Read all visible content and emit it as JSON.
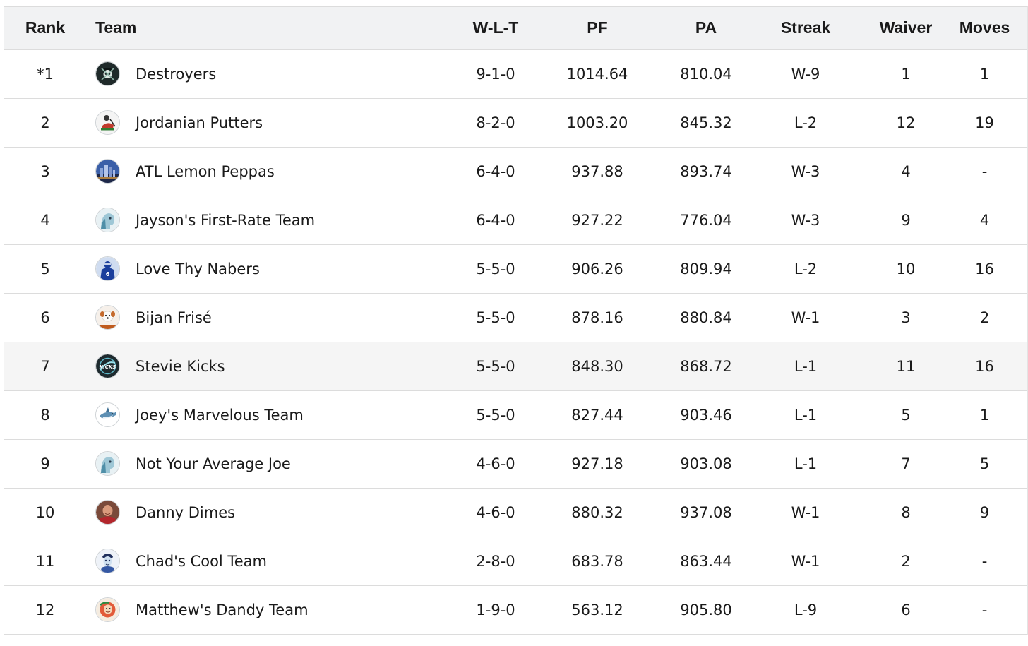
{
  "header": {
    "rank": "Rank",
    "team": "Team",
    "wlt": "W-L-T",
    "pf": "PF",
    "pa": "PA",
    "streak": "Streak",
    "waiver": "Waiver",
    "moves": "Moves"
  },
  "rows": [
    {
      "rank": "*1",
      "team": "Destroyers",
      "wlt": "9-1-0",
      "pf": "1014.64",
      "pa": "810.04",
      "streak": "W-9",
      "waiver": "1",
      "moves": "1",
      "logo": "pirate-skull-icon"
    },
    {
      "rank": "2",
      "team": "Jordanian Putters",
      "wlt": "8-2-0",
      "pf": "1003.20",
      "pa": "845.32",
      "streak": "L-2",
      "waiver": "12",
      "moves": "19",
      "logo": "golfer-icon"
    },
    {
      "rank": "3",
      "team": "ATL Lemon Peppas",
      "wlt": "6-4-0",
      "pf": "937.88",
      "pa": "893.74",
      "streak": "W-3",
      "waiver": "4",
      "moves": "-",
      "logo": "city-skyline-icon"
    },
    {
      "rank": "4",
      "team": "Jayson's First-Rate Team",
      "wlt": "6-4-0",
      "pf": "927.22",
      "pa": "776.04",
      "streak": "W-3",
      "waiver": "9",
      "moves": "4",
      "logo": "default-avatar-icon"
    },
    {
      "rank": "5",
      "team": "Love Thy Nabers",
      "wlt": "5-5-0",
      "pf": "906.26",
      "pa": "809.94",
      "streak": "L-2",
      "waiver": "10",
      "moves": "16",
      "logo": "football-player-icon"
    },
    {
      "rank": "6",
      "team": "Bijan Frisé",
      "wlt": "5-5-0",
      "pf": "878.16",
      "pa": "880.84",
      "streak": "W-1",
      "waiver": "3",
      "moves": "2",
      "logo": "dog-icon"
    },
    {
      "rank": "7",
      "team": "Stevie Kicks",
      "wlt": "5-5-0",
      "pf": "848.30",
      "pa": "868.72",
      "streak": "L-1",
      "waiver": "11",
      "moves": "16",
      "logo": "kicks-badge-icon"
    },
    {
      "rank": "8",
      "team": "Joey's Marvelous Team",
      "wlt": "5-5-0",
      "pf": "827.44",
      "pa": "903.46",
      "streak": "L-1",
      "waiver": "5",
      "moves": "1",
      "logo": "shark-icon"
    },
    {
      "rank": "9",
      "team": "Not Your Average Joe",
      "wlt": "4-6-0",
      "pf": "927.18",
      "pa": "903.08",
      "streak": "L-1",
      "waiver": "7",
      "moves": "5",
      "logo": "default-avatar-icon"
    },
    {
      "rank": "10",
      "team": "Danny Dimes",
      "wlt": "4-6-0",
      "pf": "880.32",
      "pa": "937.08",
      "streak": "W-1",
      "waiver": "8",
      "moves": "9",
      "logo": "player-photo-icon"
    },
    {
      "rank": "11",
      "team": "Chad's Cool Team",
      "wlt": "2-8-0",
      "pf": "683.78",
      "pa": "863.44",
      "streak": "W-1",
      "waiver": "2",
      "moves": "-",
      "logo": "cartoon-face-icon"
    },
    {
      "rank": "12",
      "team": "Matthew's Dandy Team",
      "wlt": "1-9-0",
      "pf": "563.12",
      "pa": "905.80",
      "streak": "L-9",
      "waiver": "6",
      "moves": "-",
      "logo": "cartoon-character-icon"
    }
  ],
  "highlighted_row": 7
}
